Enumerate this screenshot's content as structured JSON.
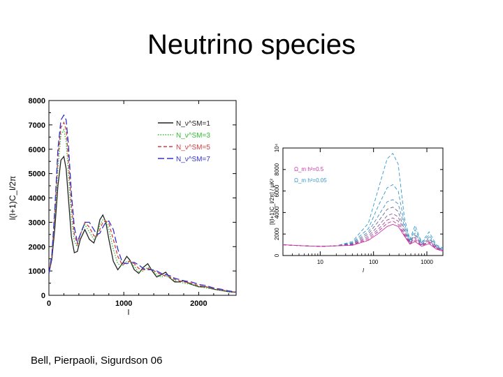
{
  "slide": {
    "title": "Neutrino species",
    "citation": "Bell, Pierpaoli, Sigurdson 06"
  },
  "chart_data": [
    {
      "type": "line",
      "xlabel": "l",
      "ylabel": "l(l+1)C_l/2π",
      "xlim": [
        0,
        2500
      ],
      "ylim": [
        0,
        8000
      ],
      "xticks": [
        "0",
        "1000",
        "2000"
      ],
      "yticks": [
        "0",
        "1000",
        "2000",
        "3000",
        "4000",
        "5000",
        "6000",
        "7000",
        "8000"
      ],
      "legend_position": "top-right",
      "legend": [
        "N_ν^SM=1",
        "N_ν^SM=3",
        "N_ν^SM=5",
        "N_ν^SM=7"
      ],
      "series": [
        {
          "legend": "N_ν^SM=1",
          "color": "#222222",
          "dash": "solid",
          "x": [
            0,
            40,
            80,
            120,
            160,
            200,
            230,
            260,
            300,
            340,
            380,
            420,
            480,
            540,
            600,
            640,
            680,
            720,
            760,
            800,
            860,
            920,
            980,
            1040,
            1080,
            1140,
            1200,
            1260,
            1320,
            1380,
            1440,
            1500,
            1560,
            1620,
            1680,
            1740,
            1800,
            1900,
            2000,
            2100,
            2200,
            2300,
            2400,
            2500
          ],
          "y": [
            900,
            1500,
            2800,
            4500,
            5550,
            5700,
            5200,
            4000,
            2400,
            1750,
            1800,
            2300,
            2700,
            2300,
            2150,
            2500,
            3100,
            3300,
            3000,
            2300,
            1400,
            1050,
            1300,
            1600,
            1450,
            1050,
            900,
            1150,
            1300,
            1000,
            750,
            850,
            950,
            700,
            550,
            550,
            600,
            450,
            350,
            350,
            250,
            200,
            150,
            120
          ]
        },
        {
          "legend": "N_ν^SM=3",
          "color": "#33bb33",
          "dash": "dotted",
          "x": [
            0,
            40,
            80,
            120,
            160,
            200,
            230,
            260,
            300,
            340,
            380,
            420,
            480,
            540,
            600,
            640,
            680,
            720,
            760,
            800,
            860,
            920,
            980,
            1040,
            1080,
            1140,
            1200,
            1260,
            1320,
            1380,
            1440,
            1500,
            1560,
            1620,
            1680,
            1740,
            1800,
            1900,
            2000,
            2100,
            2200,
            2300,
            2400,
            2500
          ],
          "y": [
            900,
            1600,
            3200,
            5200,
            6600,
            6800,
            6300,
            5000,
            3200,
            2200,
            2000,
            2500,
            2900,
            2600,
            2300,
            2450,
            2900,
            3100,
            3050,
            2700,
            1900,
            1300,
            1200,
            1400,
            1400,
            1200,
            950,
            1000,
            1150,
            1050,
            850,
            750,
            800,
            700,
            600,
            550,
            500,
            450,
            350,
            300,
            250,
            200,
            150,
            120
          ]
        },
        {
          "legend": "N_ν^SM=5",
          "color": "#d04040",
          "dash": "dashed",
          "x": [
            0,
            40,
            80,
            120,
            160,
            200,
            230,
            260,
            300,
            340,
            380,
            420,
            480,
            540,
            600,
            640,
            680,
            720,
            760,
            800,
            860,
            920,
            980,
            1040,
            1080,
            1140,
            1200,
            1260,
            1320,
            1380,
            1440,
            1500,
            1560,
            1620,
            1680,
            1740,
            1800,
            1900,
            2000,
            2100,
            2200,
            2300,
            2400,
            2500
          ],
          "y": [
            900,
            1650,
            3400,
            5700,
            6900,
            7100,
            6800,
            5600,
            3700,
            2500,
            2100,
            2500,
            3000,
            2800,
            2450,
            2400,
            2700,
            3000,
            3050,
            2950,
            2300,
            1600,
            1250,
            1350,
            1400,
            1300,
            1100,
            1050,
            1100,
            1050,
            950,
            850,
            800,
            750,
            650,
            600,
            550,
            500,
            400,
            350,
            280,
            220,
            170,
            130
          ]
        },
        {
          "legend": "N_ν^SM=7",
          "color": "#3333cc",
          "dash": "longdash",
          "x": [
            0,
            40,
            80,
            120,
            160,
            200,
            230,
            260,
            300,
            340,
            380,
            420,
            480,
            540,
            600,
            640,
            680,
            720,
            760,
            800,
            860,
            920,
            980,
            1040,
            1080,
            1140,
            1200,
            1260,
            1320,
            1380,
            1440,
            1500,
            1560,
            1620,
            1680,
            1740,
            1800,
            1900,
            2000,
            2100,
            2200,
            2300,
            2400,
            2500
          ],
          "y": [
            900,
            1700,
            3600,
            6000,
            7200,
            7400,
            7200,
            6200,
            4200,
            2800,
            2200,
            2500,
            3000,
            3000,
            2700,
            2500,
            2550,
            2800,
            3000,
            3050,
            2700,
            1900,
            1350,
            1300,
            1350,
            1350,
            1250,
            1100,
            1050,
            1050,
            1000,
            900,
            850,
            800,
            700,
            650,
            600,
            550,
            450,
            400,
            300,
            250,
            180,
            140
          ]
        }
      ]
    },
    {
      "type": "line",
      "xscale": "log",
      "xlabel": "l",
      "ylabel": "[l(l+1)C_l/2π] / μK²",
      "xlim": [
        2,
        2000
      ],
      "ylim": [
        0,
        10000
      ],
      "xticks": [
        "10",
        "100",
        "1000"
      ],
      "yticks": [
        "0",
        "2000",
        "4000",
        "6000",
        "8000",
        "10⁴"
      ],
      "legend_position": "top-left",
      "legend": [
        {
          "text": "Ω_m h²=0.5",
          "color": "#cc33aa"
        },
        {
          "text": "Ω_m h²=0.05",
          "color": "#3399cc"
        }
      ],
      "series": [
        {
          "color": "#3399cc",
          "dash": "dashed",
          "x": [
            2,
            5,
            10,
            20,
            40,
            80,
            120,
            180,
            230,
            290,
            380,
            480,
            600,
            800,
            1100,
            1500,
            2000
          ],
          "y": [
            1000,
            900,
            850,
            900,
            1300,
            3000,
            6000,
            9000,
            9500,
            8500,
            3500,
            1500,
            2800,
            1200,
            2200,
            1000,
            700
          ]
        },
        {
          "color": "#3399cc",
          "dash": "dashed",
          "x": [
            2,
            5,
            10,
            20,
            40,
            80,
            120,
            180,
            230,
            290,
            380,
            480,
            600,
            800,
            1100,
            1500,
            2000
          ],
          "y": [
            1000,
            900,
            850,
            900,
            1200,
            2500,
            4500,
            6300,
            6600,
            6000,
            3000,
            1400,
            2400,
            1200,
            1900,
            900,
            600
          ]
        },
        {
          "color": "#5588bb",
          "dash": "dashed",
          "x": [
            2,
            5,
            10,
            20,
            40,
            80,
            120,
            180,
            230,
            290,
            380,
            480,
            600,
            800,
            1100,
            1500,
            2000
          ],
          "y": [
            1000,
            900,
            850,
            900,
            1150,
            2200,
            3600,
            5000,
            5200,
            4800,
            2700,
            1300,
            2100,
            1100,
            1700,
            850,
            550
          ]
        },
        {
          "color": "#666699",
          "dash": "dashed",
          "x": [
            2,
            5,
            10,
            20,
            40,
            80,
            120,
            180,
            230,
            290,
            380,
            480,
            600,
            800,
            1100,
            1500,
            2000
          ],
          "y": [
            1000,
            900,
            850,
            900,
            1100,
            2000,
            3100,
            4300,
            4500,
            4100,
            2400,
            1250,
            1900,
            1050,
            1550,
            800,
            500
          ]
        },
        {
          "color": "#885599",
          "dash": "dashed",
          "x": [
            2,
            5,
            10,
            20,
            40,
            80,
            120,
            180,
            230,
            290,
            380,
            480,
            600,
            800,
            1100,
            1500,
            2000
          ],
          "y": [
            1000,
            900,
            850,
            900,
            1050,
            1800,
            2700,
            3700,
            3900,
            3600,
            2200,
            1200,
            1700,
            1000,
            1400,
            750,
            480
          ]
        },
        {
          "color": "#aa4499",
          "dash": "dashed",
          "x": [
            2,
            5,
            10,
            20,
            40,
            80,
            120,
            180,
            230,
            290,
            380,
            480,
            600,
            800,
            1100,
            1500,
            2000
          ],
          "y": [
            1000,
            900,
            850,
            900,
            1000,
            1650,
            2400,
            3300,
            3500,
            3200,
            2000,
            1150,
            1550,
            950,
            1300,
            700,
            450
          ]
        },
        {
          "color": "#bb3399",
          "dash": "dashed",
          "x": [
            2,
            5,
            10,
            20,
            40,
            80,
            120,
            180,
            230,
            290,
            380,
            480,
            600,
            800,
            1100,
            1500,
            2000
          ],
          "y": [
            1000,
            900,
            850,
            900,
            1000,
            1500,
            2200,
            3000,
            3200,
            2900,
            1900,
            1100,
            1400,
            900,
            1200,
            650,
            430
          ]
        },
        {
          "color": "#cc33aa",
          "dash": "solid",
          "x": [
            2,
            5,
            10,
            20,
            40,
            80,
            120,
            180,
            230,
            290,
            380,
            480,
            600,
            800,
            1100,
            1500,
            2000
          ],
          "y": [
            1000,
            900,
            850,
            900,
            950,
            1400,
            2000,
            2700,
            2900,
            2700,
            1800,
            1050,
            1300,
            850,
            1100,
            600,
            400
          ]
        }
      ]
    }
  ]
}
